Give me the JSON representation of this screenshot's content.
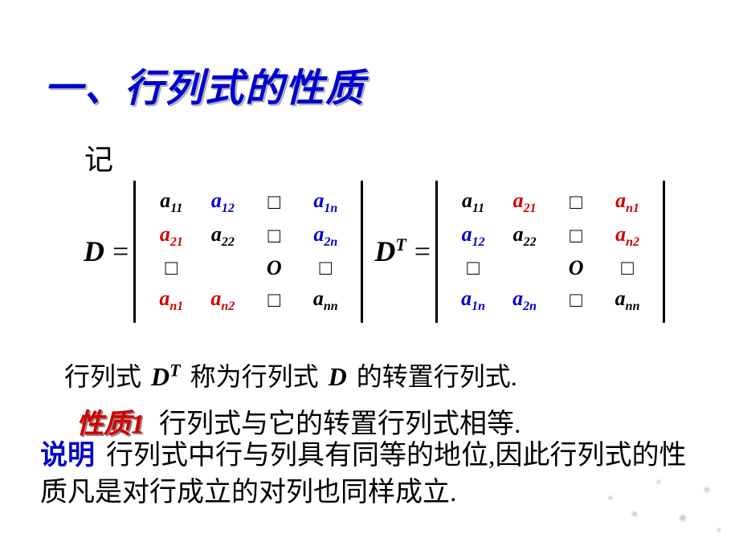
{
  "colors": {
    "title": "#0000d0",
    "accent_red": "#d00000",
    "accent_blue": "#0000d0",
    "text": "#000000",
    "background": "#ffffff",
    "placeholder": "#b0b0c0"
  },
  "fonts": {
    "body_family": "SimSun",
    "math_family": "Times New Roman",
    "title_size_pt": 36,
    "body_size_pt": 26,
    "matrix_size_pt": 20
  },
  "title": "一、行列式的性质",
  "intro": "记",
  "matrixD": {
    "lhs": "D",
    "eq": "=",
    "rows": [
      [
        {
          "v": "a",
          "s": "11",
          "c": "black"
        },
        {
          "v": "a",
          "s": "12",
          "c": "blue"
        },
        {
          "v": "□",
          "ph": true
        },
        {
          "v": "a",
          "s": "1n",
          "c": "blue"
        }
      ],
      [
        {
          "v": "a",
          "s": "21",
          "c": "red"
        },
        {
          "v": "a",
          "s": "22",
          "c": "black"
        },
        {
          "v": "□",
          "ph": true
        },
        {
          "v": "a",
          "s": "2n",
          "c": "blue"
        }
      ],
      [
        {
          "v": "□",
          "ph": true
        },
        {
          "v": ""
        },
        {
          "v": "O",
          "c": "black"
        },
        {
          "v": "□",
          "ph": true
        }
      ],
      [
        {
          "v": "a",
          "s": "n1",
          "c": "red"
        },
        {
          "v": "a",
          "s": "n2",
          "c": "red"
        },
        {
          "v": "□",
          "ph": true
        },
        {
          "v": "a",
          "s": "nn",
          "c": "black"
        }
      ]
    ]
  },
  "matrixDT": {
    "lhs": "D",
    "sup": "T",
    "eq": "=",
    "rows": [
      [
        {
          "v": "a",
          "s": "11",
          "c": "black"
        },
        {
          "v": "a",
          "s": "21",
          "c": "red"
        },
        {
          "v": "□",
          "ph": true
        },
        {
          "v": "a",
          "s": "n1",
          "c": "red"
        }
      ],
      [
        {
          "v": "a",
          "s": "12",
          "c": "blue"
        },
        {
          "v": "a",
          "s": "22",
          "c": "black"
        },
        {
          "v": "□",
          "ph": true
        },
        {
          "v": "a",
          "s": "n2",
          "c": "red"
        }
      ],
      [
        {
          "v": "□",
          "ph": true
        },
        {
          "v": ""
        },
        {
          "v": "O",
          "c": "black"
        },
        {
          "v": "□",
          "ph": true
        }
      ],
      [
        {
          "v": "a",
          "s": "1n",
          "c": "blue"
        },
        {
          "v": "a",
          "s": "2n",
          "c": "blue"
        },
        {
          "v": "□",
          "ph": true
        },
        {
          "v": "a",
          "s": "nn",
          "c": "black"
        }
      ]
    ]
  },
  "line1": {
    "pre": "行列式",
    "dt": "D",
    "dt_sup": "T",
    "mid": "称为行列式 ",
    "d": "D",
    "post": " 的转置行列式."
  },
  "property": {
    "label": "性质1",
    "text": "行列式与它的转置行列式相等."
  },
  "explain": {
    "label": "说明",
    "text": "行列式中行与列具有同等的地位,因此行列式的性质凡是对行成立的对列也同样成立."
  }
}
